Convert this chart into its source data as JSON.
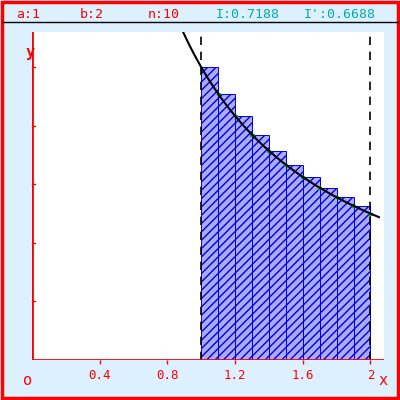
{
  "a": 1,
  "b": 2,
  "n": 10,
  "I": 0.7188,
  "I_prime": 0.6688,
  "x_ticks": [
    0.4,
    0.8,
    1.2,
    1.6,
    2.0
  ],
  "x_tick_labels": [
    "0.4",
    "0.8",
    "1.2",
    "1.6",
    "2"
  ],
  "y_label": "y",
  "x_label": "x",
  "origin_label": "o",
  "bar_fill_color": "#aaaaff",
  "bar_edge_color": "#0000dd",
  "green_color": "#00bb00",
  "curve_color": "#000000",
  "axis_color": "#ff0000",
  "bg_color": "#ddf0ff",
  "plot_bg_color": "#ffffff",
  "title_color": "#00aaaa",
  "dashed_color": "#000000",
  "xlim": [
    0.0,
    2.08
  ],
  "ylim": [
    0.0,
    1.12
  ],
  "figsize": [
    4.0,
    4.0
  ],
  "dpi": 100
}
